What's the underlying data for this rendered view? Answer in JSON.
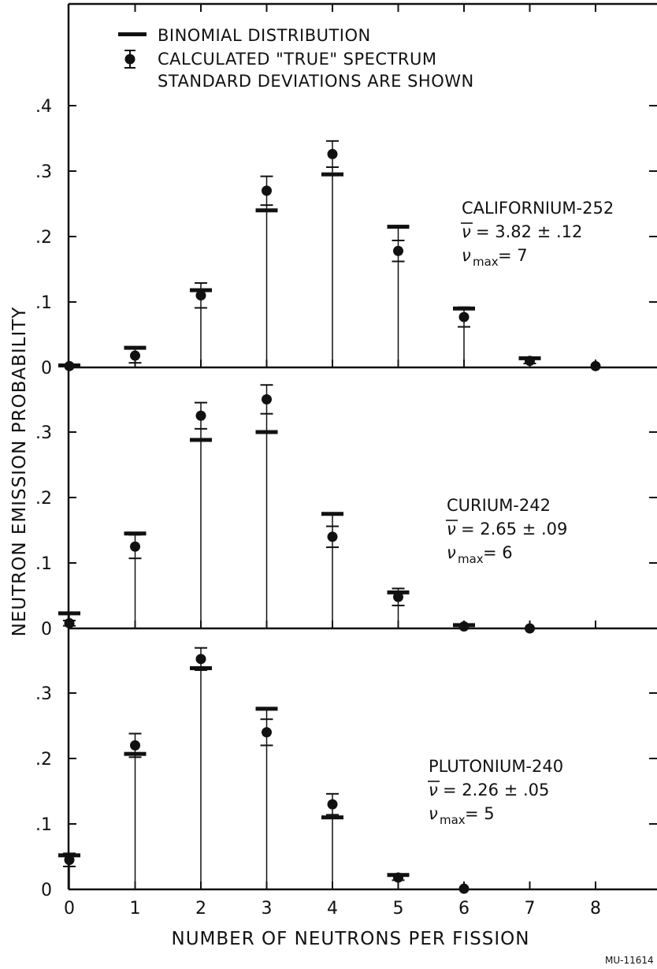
{
  "chart_data": {
    "type": "scatter",
    "xlabel": "NUMBER OF NEUTRONS PER FISSION",
    "ylabel": "NEUTRON EMISSION PROBABILITY",
    "x_ticks": [
      "0",
      "1",
      "2",
      "3",
      "4",
      "5",
      "6",
      "7",
      "8"
    ],
    "xlim": [
      0,
      8
    ],
    "legend": {
      "placement": "top-left",
      "entries": [
        {
          "marker": "bar",
          "label": "BINOMIAL DISTRIBUTION"
        },
        {
          "marker": "point-errorbar",
          "label": "CALCULATED \"TRUE\" SPECTRUM"
        }
      ],
      "note": "STANDARD DEVIATIONS ARE SHOWN"
    },
    "panels": [
      {
        "nuclide": "CALIFORNIUM-252",
        "nu_bar": "= 3.82 ± .12",
        "nu_max": "= 7",
        "ylim": [
          0,
          0.4
        ],
        "y_tick_labels": [
          ".4",
          ".3",
          ".2",
          ".1",
          "0"
        ],
        "y_tick_values": [
          0.4,
          0.3,
          0.2,
          0.1,
          0.0
        ],
        "x": [
          0,
          1,
          2,
          3,
          4,
          5,
          6,
          7,
          8
        ],
        "series": [
          {
            "name": "BINOMIAL DISTRIBUTION",
            "values": [
              0.003,
              0.03,
              0.118,
              0.24,
              0.295,
              0.215,
              0.09,
              0.014,
              null
            ]
          },
          {
            "name": "CALCULATED \"TRUE\" SPECTRUM",
            "values": [
              0.002,
              0.018,
              0.11,
              0.27,
              0.326,
              0.178,
              0.077,
              0.01,
              0.002
            ],
            "errors": [
              0.002,
              0.011,
              0.019,
              0.022,
              0.02,
              0.016,
              0.015,
              0.004,
              0.002
            ]
          }
        ]
      },
      {
        "nuclide": "CURIUM-242",
        "nu_bar": "= 2.65 ± .09",
        "nu_max": "= 6",
        "ylim": [
          0,
          0.4
        ],
        "y_tick_labels": [
          ".3",
          ".2",
          ".1",
          "0"
        ],
        "y_tick_values": [
          0.3,
          0.2,
          0.1,
          0.0
        ],
        "x": [
          0,
          1,
          2,
          3,
          4,
          5,
          6,
          7,
          8
        ],
        "series": [
          {
            "name": "BINOMIAL DISTRIBUTION",
            "values": [
              0.023,
              0.145,
              0.288,
              0.3,
              0.175,
              0.055,
              0.005,
              null,
              null
            ]
          },
          {
            "name": "CALCULATED \"TRUE\" SPECTRUM",
            "values": [
              0.008,
              0.125,
              0.325,
              0.35,
              0.14,
              0.048,
              0.003,
              0.0,
              null
            ],
            "errors": [
              0.004,
              0.018,
              0.02,
              0.022,
              0.016,
              0.013,
              0.003,
              0.002,
              null
            ]
          }
        ]
      },
      {
        "nuclide": "PLUTONIUM-240",
        "nu_bar": "= 2.26 ± .05",
        "nu_max": "= 5",
        "ylim": [
          0,
          0.4
        ],
        "y_tick_labels": [
          ".3",
          ".2",
          ".1",
          "0"
        ],
        "y_tick_values": [
          0.3,
          0.2,
          0.1,
          0.0
        ],
        "x": [
          0,
          1,
          2,
          3,
          4,
          5,
          6,
          7,
          8
        ],
        "series": [
          {
            "name": "BINOMIAL DISTRIBUTION",
            "values": [
              0.052,
              0.207,
              0.338,
              0.276,
              0.11,
              0.022,
              null,
              null,
              null
            ]
          },
          {
            "name": "CALCULATED \"TRUE\" SPECTRUM",
            "values": [
              0.045,
              0.22,
              0.352,
              0.24,
              0.13,
              0.018,
              0.001,
              null,
              null
            ],
            "errors": [
              0.01,
              0.018,
              0.017,
              0.02,
              0.016,
              0.004,
              0.001,
              null,
              null
            ]
          }
        ]
      }
    ],
    "ref_code": "MU-11614"
  }
}
